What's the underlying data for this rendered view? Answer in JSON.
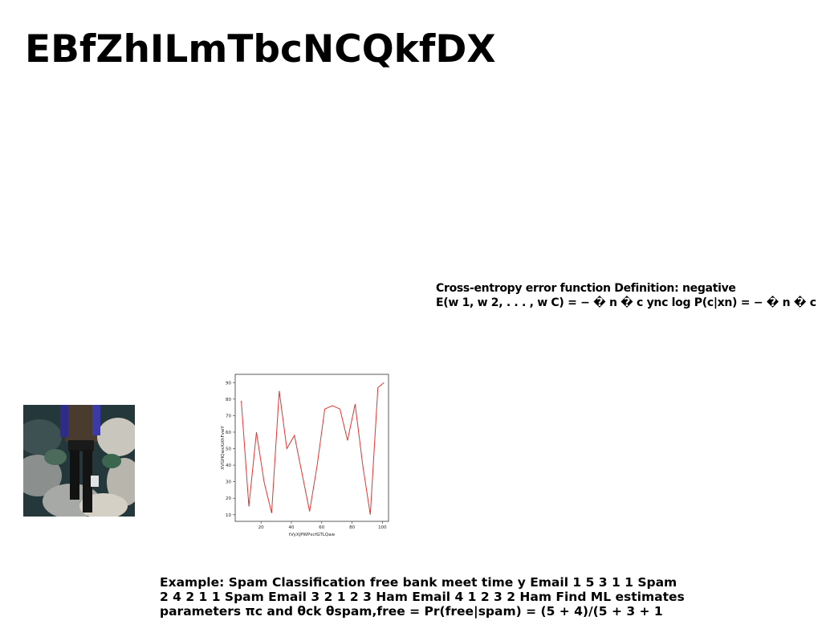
{
  "title": "EBfZhILmTbcNCQkfDX",
  "formula": {
    "line1": "Cross-entropy error function Definition: negative",
    "line2": "E(w 1, w 2, . . . , w C) = − � n � c ync log P(c|xn) = − � n � c"
  },
  "photo": {
    "icon": "person-walking-on-rocks-photo"
  },
  "chart_data": {
    "type": "line",
    "xlabel": "tVyXjPWPxcfGTLQaw",
    "ylabel": "XVGHQwxXzthFvwY",
    "x": [
      7,
      12,
      17,
      22,
      27,
      32,
      37,
      42,
      47,
      52,
      57,
      62,
      67,
      72,
      77,
      82,
      87,
      92,
      97,
      101
    ],
    "y": [
      79,
      15,
      60,
      30,
      11,
      85,
      50,
      58,
      35,
      12,
      40,
      74,
      76,
      74,
      55,
      77,
      40,
      10,
      87,
      90
    ],
    "xlim": [
      3,
      104
    ],
    "ylim": [
      6,
      95
    ],
    "xticks": [
      20,
      40,
      60,
      80,
      100
    ],
    "yticks": [
      10,
      20,
      30,
      40,
      50,
      60,
      70,
      80,
      90
    ],
    "line_color": "#e8332f",
    "grid": false
  },
  "example": {
    "line1": "Example: Spam Classification free bank meet time y Email 1 5 3 1 1 Spam",
    "line2": "2 4 2 1 1 Spam Email 3 2 1 2 3 Ham Email 4 1 2 3 2 Ham Find ML estimates",
    "line3": "parameters πc and θck θspam,free = Pr(free|spam) = (5 + 4)/(5 + 3 + 1"
  }
}
